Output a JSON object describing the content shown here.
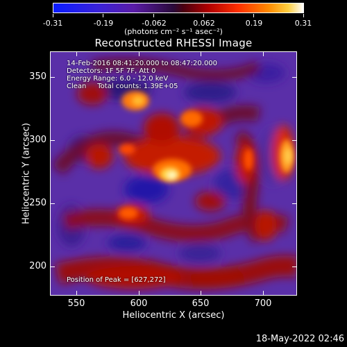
{
  "colorbar": {
    "ticks": [
      "-0.31",
      "-0.19",
      "-0.062",
      "0.062",
      "0.19",
      "0.31"
    ],
    "units": "(photons cm⁻² s⁻¹ asec⁻²)"
  },
  "title": "Reconstructed RHESSI Image",
  "annotations": {
    "time_range": "14-Feb-2016 08:41:20.000 to 08:47:20.000",
    "detectors": "Detectors: 1F 5F 7F, Att 0",
    "energy": "Energy Range: 6.0 - 12.0 keV",
    "method": "Clean     Total counts: 1.39E+05",
    "peak": "Position of Peak = [627,272]"
  },
  "axes": {
    "x_title": "Heliocentric X (arcsec)",
    "y_title": "Heliocentric Y (arcsec)",
    "x_ticks": [
      "550",
      "600",
      "650",
      "700"
    ],
    "y_ticks": [
      "350",
      "300",
      "250",
      "200"
    ]
  },
  "footer": {
    "date": "18-May-2022 02:46"
  }
}
